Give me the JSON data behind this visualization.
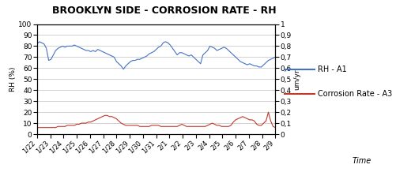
{
  "title": "BROOKLYN SIDE - CORROSION RATE - RH",
  "xlabel": "Time",
  "ylabel_left": "RH (%)",
  "ylabel_right": "um/yr",
  "ylim_left": [
    0,
    100
  ],
  "ylim_right": [
    0,
    1
  ],
  "yticks_left": [
    0,
    10,
    20,
    30,
    40,
    50,
    60,
    70,
    80,
    90,
    100
  ],
  "yticks_right_vals": [
    0,
    0.1,
    0.2,
    0.3,
    0.4,
    0.5,
    0.6,
    0.7,
    0.8,
    0.9,
    1.0
  ],
  "yticks_right_labels": [
    "0",
    "0,1",
    "0,2",
    "0,3",
    "0,4",
    "0,5",
    "0,6",
    "0,7",
    "0,8",
    "0,9",
    "1"
  ],
  "x_labels": [
    "1/22",
    "1/23",
    "1/24",
    "1/25",
    "1/26",
    "1/27",
    "1/28",
    "1/29",
    "1/30",
    "1/31",
    "2/1",
    "2/2",
    "2/3",
    "2/4",
    "2/5",
    "2/6",
    "2/7",
    "2/8",
    "2/9"
  ],
  "rh_color": "#4472C4",
  "cr_color": "#C0392B",
  "legend_rh": "RH - A1",
  "legend_cr": "Corrosion Rate - A3",
  "rh_values": [
    82,
    84,
    83,
    82,
    78,
    67,
    68,
    72,
    76,
    78,
    79,
    80,
    79,
    80,
    80,
    80,
    81,
    80,
    79,
    78,
    77,
    76,
    76,
    75,
    76,
    75,
    77,
    76,
    75,
    74,
    73,
    72,
    71,
    70,
    66,
    64,
    62,
    59,
    62,
    64,
    66,
    67,
    67,
    68,
    68,
    69,
    70,
    71,
    73,
    74,
    75,
    77,
    79,
    80,
    83,
    84,
    83,
    81,
    78,
    75,
    72,
    74,
    74,
    73,
    72,
    71,
    72,
    70,
    68,
    66,
    64,
    72,
    74,
    76,
    80,
    79,
    78,
    76,
    77,
    78,
    79,
    78,
    76,
    74,
    72,
    70,
    68,
    66,
    65,
    64,
    63,
    64,
    63,
    62,
    62,
    61,
    61,
    63,
    65,
    67,
    68,
    69,
    70
  ],
  "cr_values": [
    0.06,
    0.06,
    0.06,
    0.06,
    0.06,
    0.06,
    0.06,
    0.06,
    0.06,
    0.07,
    0.07,
    0.07,
    0.07,
    0.08,
    0.08,
    0.08,
    0.08,
    0.09,
    0.09,
    0.1,
    0.1,
    0.1,
    0.11,
    0.11,
    0.12,
    0.13,
    0.14,
    0.15,
    0.16,
    0.17,
    0.17,
    0.16,
    0.16,
    0.15,
    0.14,
    0.12,
    0.1,
    0.09,
    0.08,
    0.08,
    0.08,
    0.08,
    0.08,
    0.08,
    0.07,
    0.07,
    0.07,
    0.07,
    0.07,
    0.08,
    0.08,
    0.08,
    0.08,
    0.07,
    0.07,
    0.07,
    0.07,
    0.07,
    0.07,
    0.07,
    0.07,
    0.08,
    0.09,
    0.08,
    0.07,
    0.07,
    0.07,
    0.07,
    0.07,
    0.07,
    0.07,
    0.07,
    0.07,
    0.08,
    0.09,
    0.1,
    0.09,
    0.08,
    0.08,
    0.07,
    0.07,
    0.07,
    0.07,
    0.08,
    0.11,
    0.13,
    0.14,
    0.15,
    0.16,
    0.15,
    0.14,
    0.13,
    0.13,
    0.12,
    0.09,
    0.08,
    0.08,
    0.1,
    0.12,
    0.2,
    0.12,
    0.07,
    0.06
  ],
  "background_color": "#FFFFFF",
  "grid_color": "#BFBFBF",
  "title_fontsize": 9,
  "axis_fontsize": 6.5,
  "legend_fontsize": 7
}
